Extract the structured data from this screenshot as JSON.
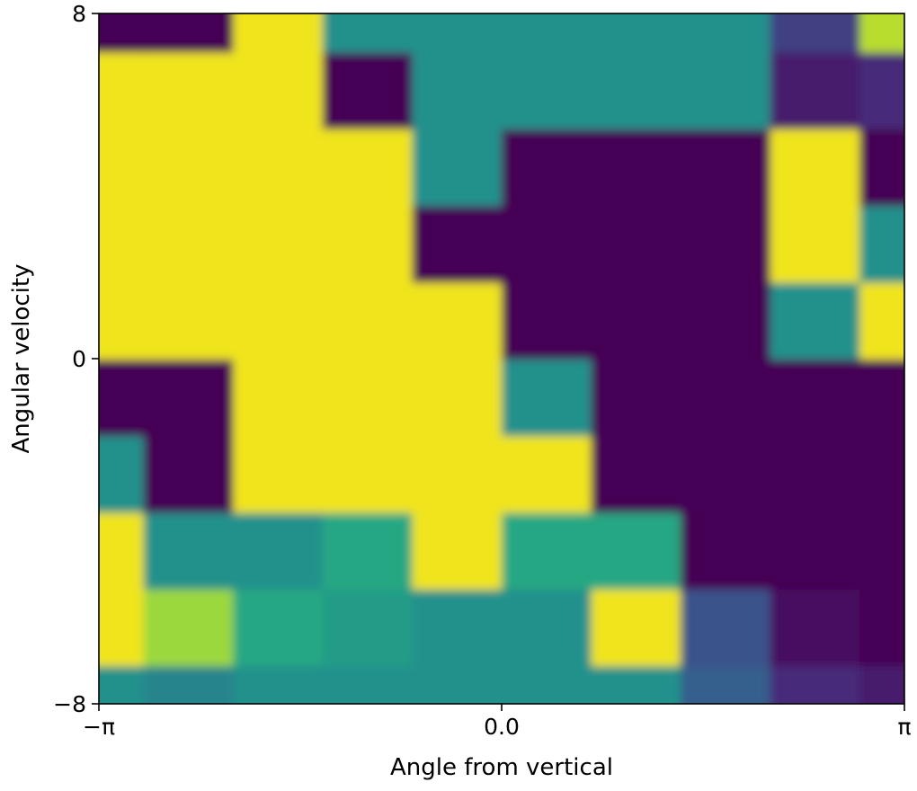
{
  "chart_data": {
    "type": "heatmap",
    "title": "",
    "xlabel": "Angle from vertical",
    "ylabel": "Angular velocity",
    "xlim": [
      -3.14159,
      3.14159
    ],
    "ylim": [
      -8,
      8
    ],
    "x_ticks": [
      {
        "value": -3.14159,
        "label": "−π"
      },
      {
        "value": 0,
        "label": "0.0"
      },
      {
        "value": 3.14159,
        "label": "π"
      }
    ],
    "y_ticks": [
      {
        "value": -8,
        "label": "−8"
      },
      {
        "value": 0,
        "label": "0"
      },
      {
        "value": 8,
        "label": "8"
      }
    ],
    "grid": false,
    "legend": "none",
    "colormap": "viridis",
    "color_low": "#440154",
    "color_high": "#fde725",
    "grid_shape": [
      10,
      10
    ],
    "x": [
      -3.14159,
      -2.44346,
      -1.74533,
      -1.0472,
      -0.34907,
      0.34907,
      1.0472,
      1.74533,
      2.44346,
      3.14159
    ],
    "y": [
      -8,
      -6.2222,
      -4.4444,
      -2.6667,
      -0.8889,
      0.8889,
      2.6667,
      4.4444,
      6.2222,
      8
    ],
    "z": [
      [
        0.5,
        0.45,
        0.5,
        0.5,
        0.5,
        0.5,
        0.5,
        0.3,
        0.15,
        0.1
      ],
      [
        1.0,
        0.85,
        0.6,
        0.55,
        0.5,
        0.5,
        1.0,
        0.25,
        0.05,
        0.0
      ],
      [
        1.0,
        0.5,
        0.5,
        0.6,
        1.0,
        0.6,
        0.6,
        0.0,
        0.0,
        0.0
      ],
      [
        0.5,
        0.0,
        1.0,
        1.0,
        1.0,
        1.0,
        0.0,
        0.0,
        0.0,
        0.0
      ],
      [
        0.0,
        0.0,
        1.0,
        1.0,
        1.0,
        0.5,
        0.0,
        0.0,
        0.0,
        0.0
      ],
      [
        1.0,
        1.0,
        1.0,
        1.0,
        1.0,
        0.0,
        0.0,
        0.0,
        0.5,
        1.0
      ],
      [
        1.0,
        1.0,
        1.0,
        1.0,
        0.0,
        0.0,
        0.0,
        0.0,
        1.0,
        0.5
      ],
      [
        1.0,
        1.0,
        1.0,
        1.0,
        0.5,
        0.0,
        0.0,
        0.0,
        1.0,
        0.0
      ],
      [
        1.0,
        1.0,
        1.0,
        0.0,
        0.5,
        0.5,
        0.5,
        0.5,
        0.1,
        0.15
      ],
      [
        0.0,
        0.0,
        1.0,
        0.5,
        0.5,
        0.5,
        0.5,
        0.5,
        0.2,
        0.9
      ]
    ]
  }
}
